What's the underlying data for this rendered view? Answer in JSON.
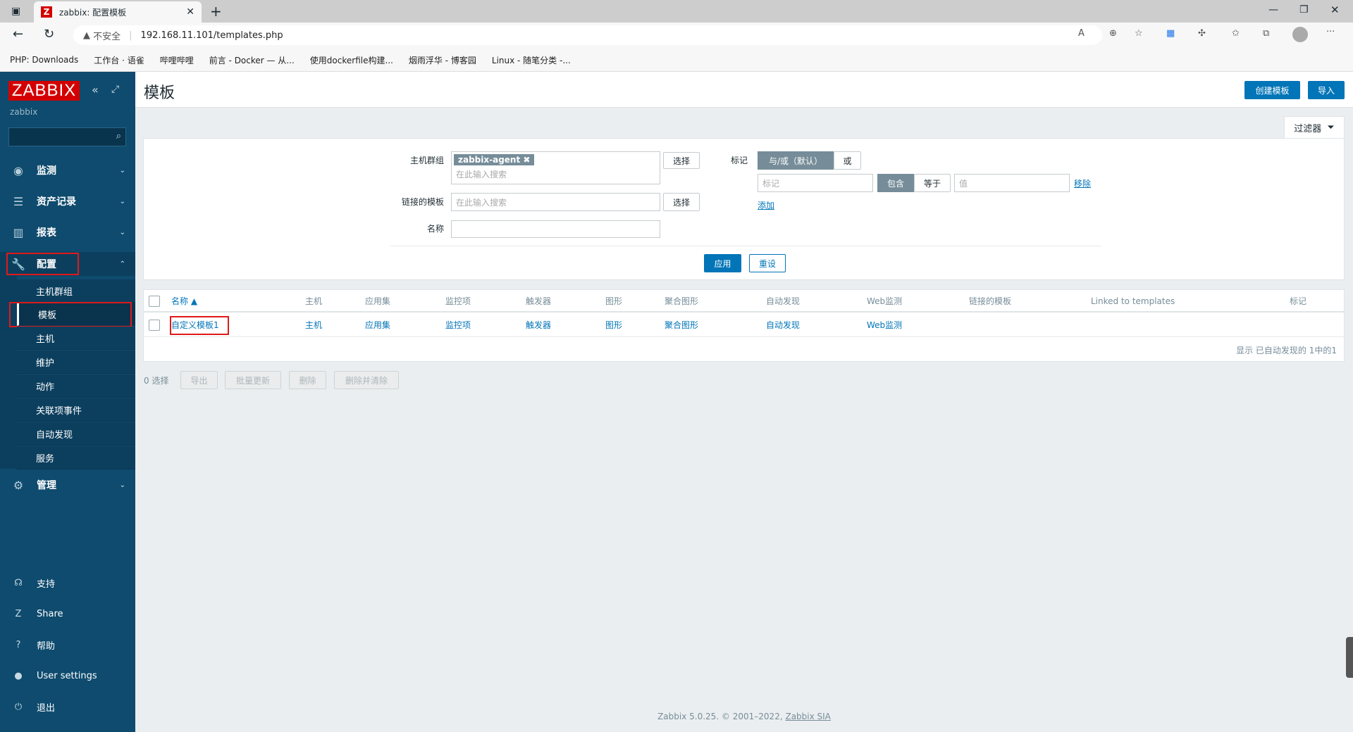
{
  "browser": {
    "tab_title": "zabbix: 配置模板",
    "tab_favicon": "Z",
    "address": "192.168.11.101/templates.php",
    "security": "不安全",
    "bookmarks": [
      "PHP: Downloads",
      "工作台 · 语雀",
      "哔哩哔哩",
      "前言 - Docker — 从...",
      "使用dockerfile构建...",
      "烟雨浮华 - 博客园",
      "Linux - 随笔分类 -..."
    ]
  },
  "sidebar": {
    "logo": "ZABBIX",
    "server": "zabbix",
    "menu": [
      {
        "label": "监测",
        "icon": "eye-icon"
      },
      {
        "label": "资产记录",
        "icon": "list-icon"
      },
      {
        "label": "报表",
        "icon": "bar-chart-icon"
      },
      {
        "label": "配置",
        "icon": "wrench-icon"
      },
      {
        "label": "管理",
        "icon": "gear-icon"
      }
    ],
    "config_sub": [
      "主机群组",
      "模板",
      "主机",
      "维护",
      "动作",
      "关联项事件",
      "自动发现",
      "服务"
    ],
    "bottom": [
      {
        "label": "支持",
        "icon": "headset-icon"
      },
      {
        "label": "Share",
        "icon": "share-icon"
      },
      {
        "label": "帮助",
        "icon": "help-icon"
      },
      {
        "label": "User settings",
        "icon": "user-icon"
      },
      {
        "label": "退出",
        "icon": "power-icon"
      }
    ]
  },
  "header": {
    "title": "模板",
    "create": "创建模板",
    "import": "导入"
  },
  "filter": {
    "tab": "过滤器",
    "hostgroup_label": "主机群组",
    "hostgroup_chip": "zabbix-agent",
    "search_placeholder": "在此输入搜索",
    "select": "选择",
    "linked_label": "链接的模板",
    "name_label": "名称",
    "name_value": "",
    "tags_label": "标记",
    "andor": "与/或（默认）",
    "or": "或",
    "tag_placeholder": "标记",
    "contains": "包含",
    "equals": "等于",
    "value_placeholder": "值",
    "remove": "移除",
    "add": "添加",
    "apply": "应用",
    "reset": "重设"
  },
  "table": {
    "columns": [
      "名称 ▲",
      "主机",
      "应用集",
      "监控项",
      "触发器",
      "图形",
      "聚合图形",
      "自动发现",
      "Web监测",
      "链接的模板",
      "Linked to templates",
      "标记"
    ],
    "rows": [
      [
        "自定义模板1",
        "主机",
        "应用集",
        "监控项",
        "触发器",
        "图形",
        "聚合图形",
        "自动发现",
        "Web监测",
        "",
        "",
        ""
      ]
    ],
    "footer": "显示 已自动发现的 1中的1"
  },
  "actions": {
    "selected": "0 选择",
    "export": "导出",
    "mass_update": "批量更新",
    "delete": "删除",
    "delete_clear": "删除并清除"
  },
  "footer": {
    "text": "Zabbix 5.0.25. © 2001–2022, ",
    "link": "Zabbix SIA"
  }
}
